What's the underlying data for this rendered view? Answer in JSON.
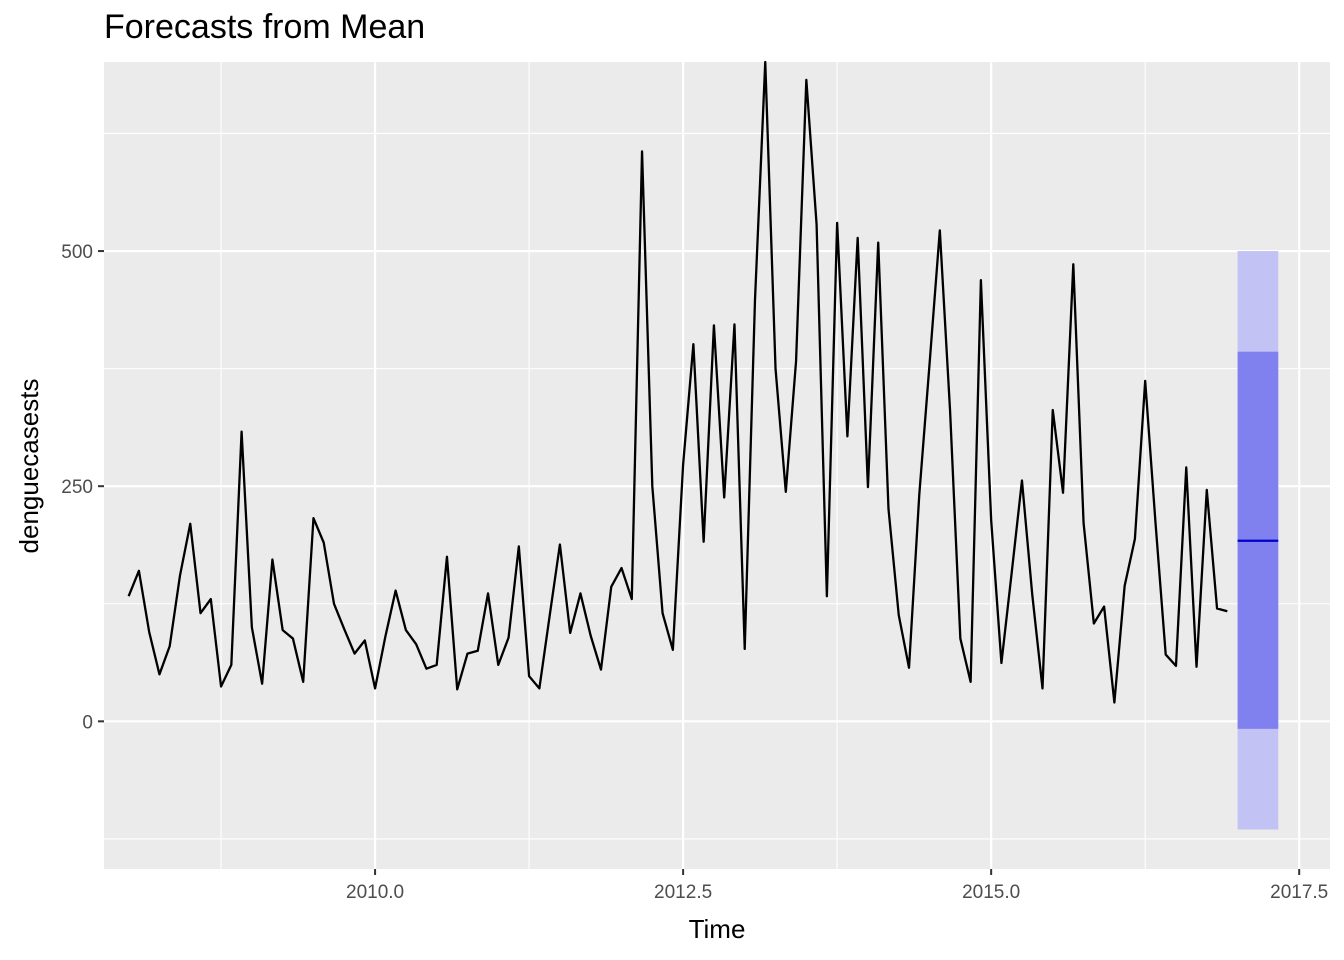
{
  "chart_data": {
    "type": "line",
    "title": "Forecasts from Mean",
    "xlabel": "Time",
    "ylabel": "denguecasests",
    "xlim": [
      2007.8,
      2017.75
    ],
    "ylim": [
      -157,
      701
    ],
    "x_ticks": [
      2010.0,
      2012.5,
      2015.0,
      2017.5
    ],
    "x_tick_labels": [
      "2010.0",
      "2012.5",
      "2015.0",
      "2017.5"
    ],
    "y_ticks": [
      0,
      250,
      500
    ],
    "y_tick_labels": [
      "0",
      "250",
      "500"
    ],
    "grid": true,
    "legend": "none",
    "colors": {
      "panel_background": "#ebebeb",
      "grid": "#ffffff",
      "series_line": "#000000",
      "forecast_line": "#0000cc",
      "interval_80": "#8080ef",
      "interval_95": "#c2c2f4"
    },
    "series": [
      {
        "start": 2008.0,
        "frequency": 12,
        "values": [
          133,
          160,
          95,
          50,
          80,
          155,
          210,
          115,
          130,
          37,
          60,
          308,
          100,
          40,
          172,
          97,
          88,
          42,
          216,
          190,
          125,
          98,
          72,
          86,
          35,
          90,
          139,
          97,
          82,
          56,
          60,
          175,
          34,
          72,
          75,
          136,
          60,
          89,
          186,
          48,
          35,
          112,
          188,
          94,
          136,
          91,
          55,
          143,
          163,
          130,
          606,
          250,
          115,
          76,
          273,
          401,
          191,
          421,
          238,
          422,
          77,
          448,
          701,
          375,
          244,
          383,
          682,
          528,
          133,
          530,
          303,
          514,
          249,
          509,
          226,
          113,
          57,
          241,
          380,
          522,
          330,
          88,
          42,
          469,
          214,
          62,
          158,
          256,
          135,
          35,
          331,
          243,
          486,
          211,
          104,
          122,
          20,
          144,
          194,
          362,
          212,
          71,
          59,
          270,
          58,
          246,
          120,
          117
        ]
      }
    ],
    "forecast": {
      "x": [
        2017.0,
        2017.33
      ],
      "mean": 192,
      "lo80": -8,
      "hi80": 393,
      "lo95": -115,
      "hi95": 500
    }
  }
}
